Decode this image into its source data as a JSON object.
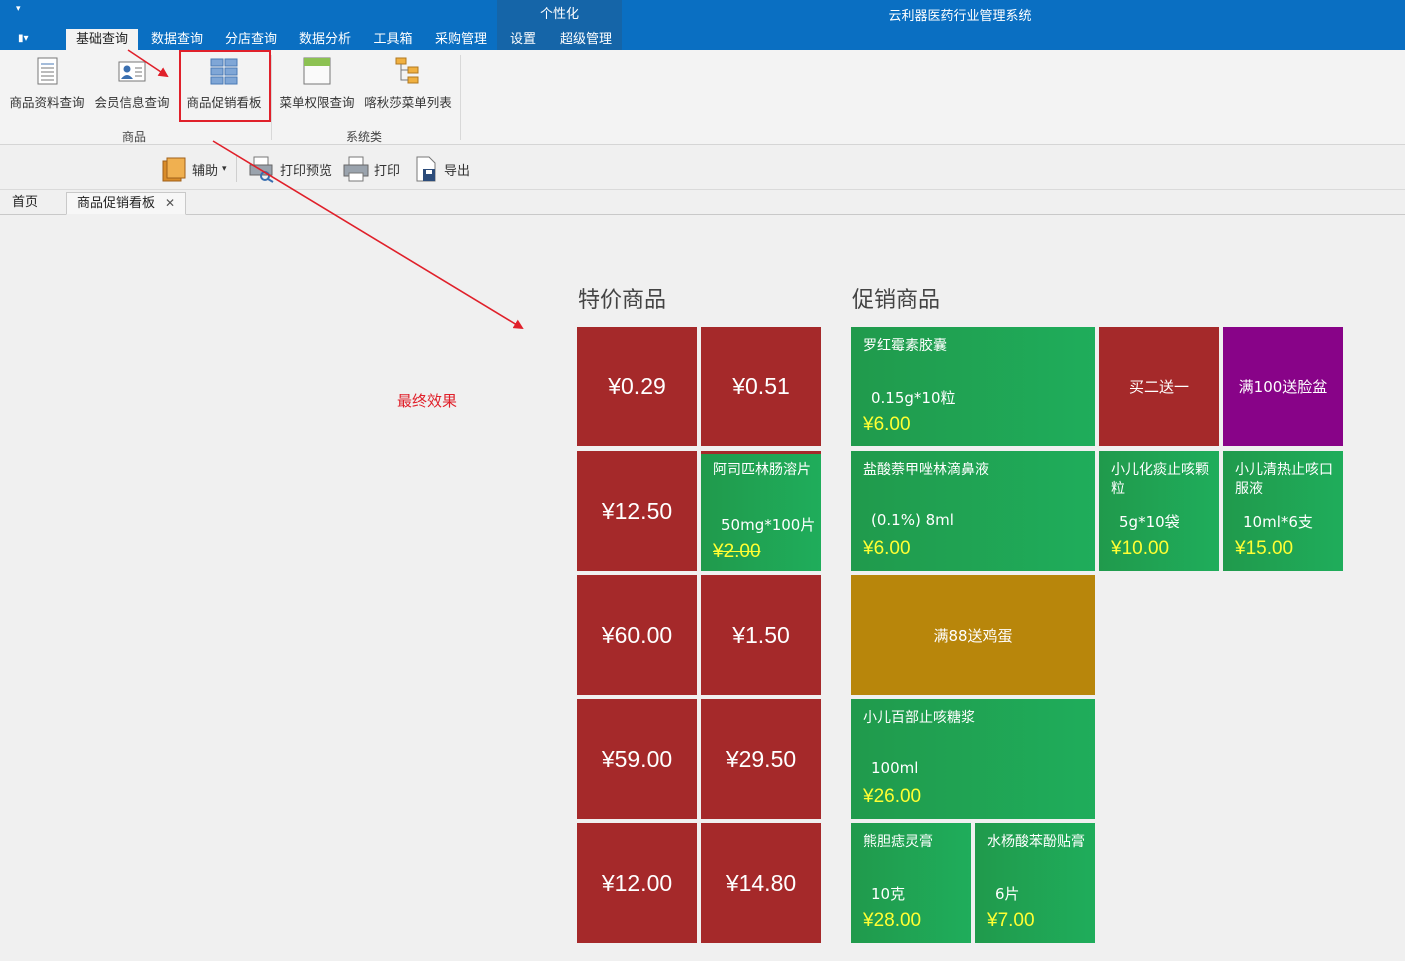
{
  "titlebar": {
    "quick_access": "▾",
    "context_tab": "个性化",
    "app_title": "云利器医药行业管理系统",
    "file_button": "▮▾",
    "menus": [
      "基础查询",
      "数据查询",
      "分店查询",
      "数据分析",
      "工具箱",
      "采购管理",
      "设置",
      "超级管理"
    ],
    "active_menu": "基础查询"
  },
  "ribbon": {
    "buttons": [
      "商品资料查询",
      "会员信息查询",
      "商品促销看板",
      "菜单权限查询",
      "喀秋莎菜单列表"
    ],
    "groups": [
      "商品",
      "系统类"
    ]
  },
  "toolbar": {
    "assist": "辅助",
    "assist_arrow": "▾",
    "print_preview": "打印预览",
    "print": "打印",
    "export": "导出"
  },
  "doc_tabs": {
    "home": "首页",
    "active": "商品促销看板",
    "close": "✕"
  },
  "annotation": {
    "text": "最终效果",
    "color": "#e0202a"
  },
  "special": {
    "title": "特价商品",
    "tiles": [
      {
        "price": "¥0.29"
      },
      {
        "price": "¥0.51"
      },
      {
        "price": "¥12.50"
      },
      {
        "name": "阿司匹林肠溶片",
        "spec": "50mg*100片",
        "price": "¥2.00"
      },
      {
        "price": "¥60.00"
      },
      {
        "price": "¥1.50"
      },
      {
        "price": "¥59.00"
      },
      {
        "price": "¥29.50"
      },
      {
        "price": "¥12.00"
      },
      {
        "price": "¥14.80"
      }
    ]
  },
  "promo": {
    "title": "促销商品",
    "tiles": [
      {
        "name": "罗红霉素胶囊",
        "spec": "0.15g*10粒",
        "price": "¥6.00"
      },
      {
        "text": "买二送一"
      },
      {
        "text": "满100送脸盆"
      },
      {
        "name": "盐酸萘甲唑林滴鼻液",
        "spec": "(0.1%) 8ml",
        "price": "¥6.00"
      },
      {
        "name": "小儿化痰止咳颗粒",
        "spec": "5g*10袋",
        "price": "¥10.00"
      },
      {
        "name": "小儿清热止咳口服液",
        "spec": "10ml*6支",
        "price": "¥15.00"
      },
      {
        "text": "满88送鸡蛋"
      },
      {
        "name": "小儿百部止咳糖浆",
        "spec": "100ml",
        "price": "¥26.00"
      },
      {
        "name": "熊胆痣灵膏",
        "spec": "10克",
        "price": "¥28.00"
      },
      {
        "name": "水杨酸苯酚贴膏",
        "spec": "6片",
        "price": "¥7.00"
      }
    ]
  },
  "colors": {
    "titlebar": "#0a6fc2",
    "tile_red": "#a5292a",
    "tile_green": "#1fad5b",
    "tile_purple": "#880388",
    "tile_gold": "#b8860b",
    "price_yellow": "#ffff33"
  },
  "icons": [
    "sheet-icon",
    "member-card-icon",
    "board-grid-icon",
    "window-icon",
    "tree-icon",
    "folder-stack-icon",
    "print-preview-icon",
    "printer-icon",
    "export-icon"
  ]
}
